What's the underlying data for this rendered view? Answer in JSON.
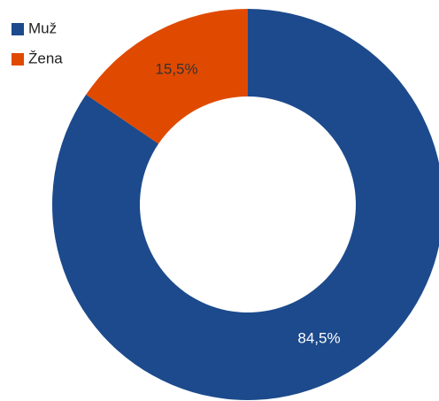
{
  "chart_data": {
    "type": "pie",
    "categories": [
      "Muž",
      "Žena"
    ],
    "values": [
      84.5,
      15.5
    ],
    "value_labels": [
      "84,5%",
      "15,5%"
    ],
    "colors": [
      "#1c4a8c",
      "#e04a00"
    ],
    "label_colors": [
      "#ffffff",
      "#333333"
    ],
    "legend": "top-left"
  }
}
